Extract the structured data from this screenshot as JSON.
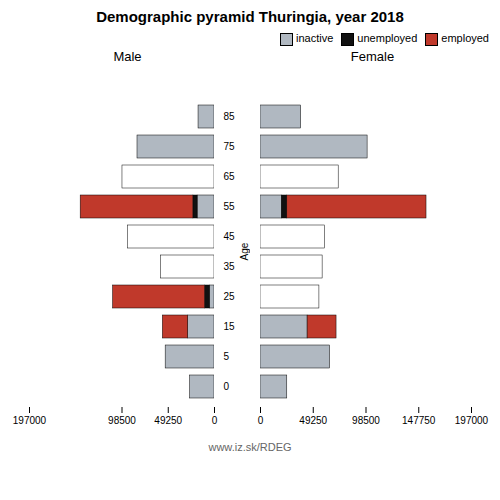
{
  "title": "Demographic pyramid Thuringia, year 2018",
  "annotations": [
    "www.iz.sk/RDEG"
  ],
  "chart_data": [
    {
      "type": "bar",
      "orientation": "horizontal",
      "stacked": true,
      "title": "Male",
      "ylabel": "Age",
      "categories": [
        85,
        75,
        65,
        55,
        45,
        35,
        25,
        15,
        5,
        0
      ],
      "series": [
        {
          "name": "inactive",
          "color": "#b0b8c1",
          "values": [
            17000,
            82000,
            98000,
            18000,
            92000,
            57000,
            5000,
            28000,
            52000,
            26000
          ],
          "colors": [
            "#b0b8c1",
            "#b0b8c1",
            "#ffffff",
            "#b0b8c1",
            "#ffffff",
            "#ffffff",
            "#b0b8c1",
            "#b0b8c1",
            "#b0b8c1",
            "#b0b8c1"
          ]
        },
        {
          "name": "unemployed",
          "color": "#111111",
          "values": [
            0,
            0,
            0,
            4500,
            0,
            0,
            5000,
            0,
            0,
            0
          ]
        },
        {
          "name": "employed",
          "color": "#c0392b",
          "values": [
            0,
            0,
            0,
            120000,
            0,
            0,
            98000,
            27000,
            0,
            0
          ]
        }
      ],
      "xlim": [
        197000,
        0
      ],
      "xticks": [
        197000,
        98500,
        49250,
        0
      ]
    },
    {
      "type": "bar",
      "orientation": "horizontal",
      "stacked": true,
      "title": "Female",
      "legend": "upper right",
      "categories": [
        85,
        75,
        65,
        55,
        45,
        35,
        25,
        15,
        5,
        0
      ],
      "series": [
        {
          "name": "inactive",
          "color": "#b0b8c1",
          "values": [
            38000,
            100000,
            73000,
            20000,
            60000,
            58000,
            55000,
            44000,
            65000,
            25000
          ],
          "colors": [
            "#b0b8c1",
            "#b0b8c1",
            "#ffffff",
            "#b0b8c1",
            "#ffffff",
            "#ffffff",
            "#ffffff",
            "#b0b8c1",
            "#b0b8c1",
            "#b0b8c1"
          ]
        },
        {
          "name": "unemployed",
          "color": "#111111",
          "values": [
            0,
            0,
            0,
            5000,
            0,
            0,
            0,
            0,
            0,
            0
          ]
        },
        {
          "name": "employed",
          "color": "#c0392b",
          "values": [
            0,
            0,
            0,
            130000,
            0,
            0,
            0,
            27000,
            0,
            0
          ]
        }
      ],
      "xlim": [
        0,
        197000
      ],
      "xticks": [
        0,
        49250,
        98500,
        147750,
        197000
      ]
    }
  ]
}
